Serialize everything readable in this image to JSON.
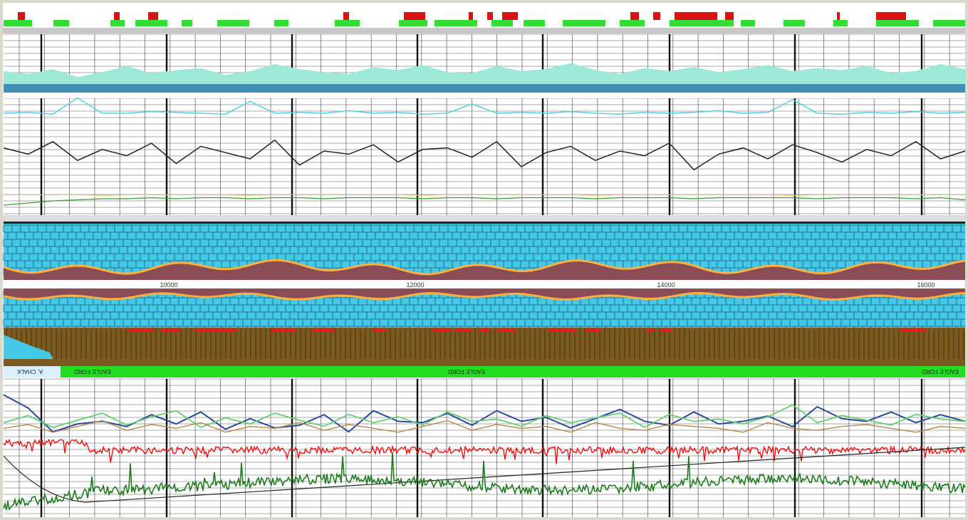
{
  "chart_data": {
    "type": "line",
    "title": "",
    "depth_axis": {
      "ticks": [
        "10000",
        "12000",
        "14000",
        "16000"
      ],
      "range": [
        9000,
        16500
      ]
    },
    "formation_strip": {
      "labels": [
        "A. CHALK",
        "EAGLE FORD",
        "EAGLE FORD",
        "EAGLE FORD"
      ]
    },
    "grid": true,
    "colors": {
      "top_flag_green": "#33dd33",
      "top_flag_red": "#dd1111",
      "gamma_fill": "#9ee8d8",
      "gamma_base": "#3f8fb5",
      "cyan_curve": "#55d0e0",
      "black_curve": "#222222",
      "yellow_curve": "#e0d060",
      "green_curve": "#3a9a3a",
      "brick_blue": "#44c8e8",
      "brick_maroon": "#8a4d55",
      "brick_brown": "#7a5a1e",
      "brick_line_orange": "#ffb040",
      "formation_band": "#22dd22",
      "bottom_blue": "#2b4a9a",
      "bottom_lightgreen": "#66cc77",
      "bottom_tan": "#b88850",
      "bottom_red": "#ee1111",
      "bottom_darkgreen": "#1d7a1d"
    },
    "series": [
      {
        "key": "gamma",
        "values": [
          58,
          55,
          60,
          52,
          57,
          63,
          56,
          59,
          61,
          54,
          58,
          65,
          60,
          57,
          55,
          62,
          59,
          64,
          57,
          56,
          63,
          58,
          60,
          66,
          59,
          55,
          61,
          58,
          62,
          57,
          60,
          64,
          58,
          61,
          59,
          63,
          56,
          58,
          65,
          60
        ]
      },
      {
        "key": "cyan",
        "values": [
          30,
          31,
          29,
          48,
          30,
          30,
          32,
          31,
          30,
          29,
          44,
          30,
          31,
          30,
          33,
          30,
          31,
          29,
          30,
          41,
          30,
          31,
          30,
          32,
          30,
          29,
          31,
          30,
          31,
          33,
          30,
          31,
          46,
          30,
          29,
          31,
          30,
          32,
          30,
          31
        ]
      },
      {
        "key": "black",
        "values": [
          62,
          58,
          66,
          54,
          61,
          57,
          65,
          52,
          63,
          59,
          55,
          67,
          51,
          60,
          58,
          64,
          53,
          61,
          62,
          56,
          66,
          50,
          59,
          63,
          54,
          60,
          57,
          65,
          48,
          58,
          62,
          55,
          64,
          59,
          53,
          61,
          57,
          66,
          55,
          60
        ]
      },
      {
        "key": "yellow",
        "values": [
          22,
          22,
          22,
          22,
          21,
          22,
          22,
          22,
          22,
          22,
          21,
          22,
          22,
          22,
          22,
          22,
          22,
          21,
          22,
          22,
          22,
          22,
          22,
          22,
          21,
          22,
          22,
          22,
          22,
          22,
          22,
          22,
          21,
          22,
          22,
          22,
          22,
          22,
          22,
          22
        ]
      },
      {
        "key": "green",
        "values": [
          8,
          10,
          12,
          13,
          14,
          14,
          15,
          14,
          15,
          15,
          14,
          15,
          15,
          14,
          15,
          15,
          15,
          14,
          15,
          15,
          14,
          15,
          15,
          15,
          14,
          15,
          15,
          15,
          14,
          15,
          15,
          15,
          15,
          14,
          15,
          15,
          15,
          14,
          15,
          13
        ]
      },
      {
        "key": "blue",
        "values": [
          70,
          60,
          42,
          48,
          50,
          46,
          55,
          48,
          57,
          44,
          52,
          45,
          47,
          55,
          42,
          58,
          50,
          49,
          56,
          47,
          58,
          50,
          53,
          45,
          52,
          59,
          50,
          47,
          57,
          48,
          50,
          54,
          46,
          61,
          52,
          50,
          57,
          49,
          55,
          50
        ]
      },
      {
        "key": "lightgreen",
        "values": [
          40,
          46,
          36,
          42,
          48,
          38,
          45,
          50,
          36,
          44,
          39,
          48,
          42,
          37,
          47,
          40,
          45,
          38,
          49,
          41,
          43,
          37,
          46,
          40,
          44,
          48,
          36,
          47,
          41,
          43,
          39,
          45,
          55,
          40,
          46,
          42,
          38,
          47,
          43,
          41
        ]
      },
      {
        "key": "tan",
        "values": [
          30,
          32,
          28,
          31,
          34,
          29,
          32,
          30,
          33,
          28,
          31,
          30,
          33,
          29,
          32,
          30,
          28,
          31,
          34,
          29,
          32,
          30,
          31,
          28,
          33,
          30,
          29,
          32,
          31,
          30,
          28,
          33,
          30,
          29,
          31,
          32,
          30,
          28,
          31,
          30
        ]
      },
      {
        "key": "red",
        "values": [
          50,
          50,
          46,
          44,
          45,
          43,
          46,
          44,
          45,
          43,
          47,
          44,
          45,
          46,
          43,
          45,
          44,
          47,
          43,
          45,
          44,
          46,
          43,
          45,
          47,
          44,
          45,
          43,
          46,
          44,
          45,
          47,
          43,
          45,
          44,
          46,
          43,
          45,
          44,
          46
        ]
      },
      {
        "key": "darkgreen",
        "values": [
          10,
          12,
          18,
          20,
          22,
          21,
          23,
          22,
          24,
          21,
          23,
          25,
          22,
          24,
          23,
          21,
          25,
          22,
          24,
          23,
          26,
          22,
          24,
          21,
          25,
          23,
          22,
          26,
          24,
          23,
          25,
          22,
          28,
          24,
          26,
          23,
          25,
          27,
          24,
          26
        ]
      }
    ]
  }
}
